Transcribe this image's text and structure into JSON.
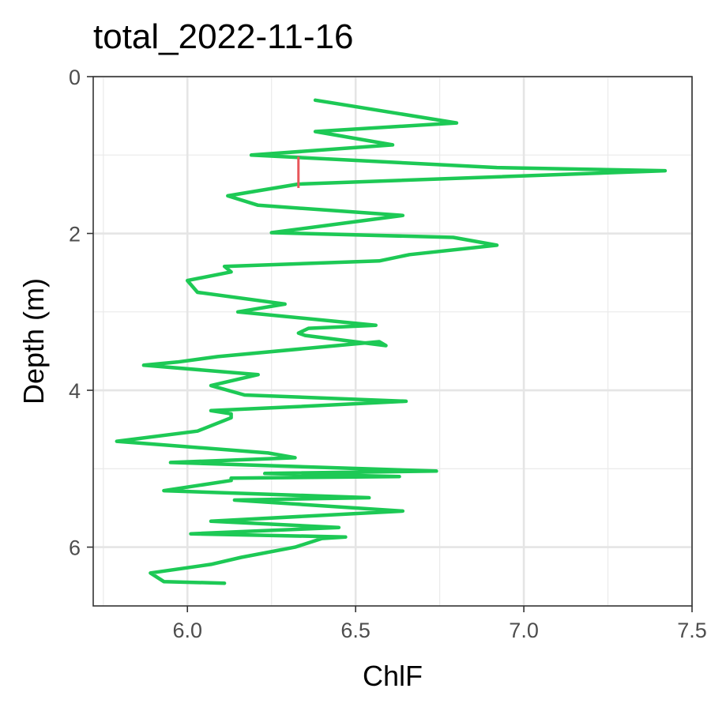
{
  "chart_data": {
    "type": "line",
    "title": "total_2022-11-16",
    "xlabel": "ChlF",
    "ylabel": "Depth (m)",
    "xlim": [
      5.72,
      7.5
    ],
    "ylim": [
      0,
      6.75
    ],
    "y_reversed": true,
    "x_ticks": [
      {
        "value": 6.0,
        "label": "6.0"
      },
      {
        "value": 6.5,
        "label": "6.5"
      },
      {
        "value": 7.0,
        "label": "7.0"
      },
      {
        "value": 7.5,
        "label": "7.5"
      }
    ],
    "y_ticks": [
      {
        "value": 0,
        "label": "0"
      },
      {
        "value": 2,
        "label": "2"
      },
      {
        "value": 4,
        "label": "4"
      },
      {
        "value": 6,
        "label": "6"
      }
    ],
    "grid": true,
    "colors": {
      "profile": "#1dc955",
      "marker": "#e8575a"
    },
    "series": [
      {
        "x": [
          6.38,
          6.8,
          6.38,
          6.61,
          6.19,
          6.92,
          7.42,
          6.33,
          6.12,
          6.21,
          6.64,
          6.25,
          6.79,
          6.92,
          6.66,
          6.57,
          6.11,
          6.13,
          6.0,
          6.03,
          6.29,
          6.15,
          6.56,
          6.36,
          6.33,
          6.35,
          6.59,
          6.57,
          6.09,
          5.97,
          5.87,
          6.21,
          6.07,
          6.17,
          6.65,
          6.32,
          6.07,
          6.13,
          6.13,
          6.03,
          5.79,
          6.24,
          6.32,
          5.95,
          6.74,
          6.23,
          6.63,
          6.13,
          6.13,
          5.93,
          6.54,
          6.14,
          6.64,
          6.07,
          6.45,
          6.01,
          6.47,
          6.4,
          6.32,
          6.16,
          6.07,
          5.89,
          5.93,
          6.11
        ],
        "y": [
          0.3,
          0.59,
          0.7,
          0.87,
          1.0,
          1.16,
          1.2,
          1.37,
          1.52,
          1.64,
          1.77,
          1.99,
          2.05,
          2.15,
          2.27,
          2.35,
          2.42,
          2.49,
          2.6,
          2.75,
          2.9,
          3.0,
          3.17,
          3.21,
          3.27,
          3.3,
          3.43,
          3.38,
          3.57,
          3.64,
          3.68,
          3.8,
          3.94,
          4.06,
          4.14,
          4.21,
          4.26,
          4.3,
          4.35,
          4.52,
          4.65,
          4.8,
          4.86,
          4.92,
          5.03,
          5.06,
          5.1,
          5.12,
          5.15,
          5.28,
          5.37,
          5.4,
          5.54,
          5.67,
          5.75,
          5.83,
          5.87,
          5.89,
          6.0,
          6.13,
          6.22,
          6.33,
          6.44,
          6.46
        ]
      },
      {
        "x": [
          6.33,
          6.33
        ],
        "y": [
          1.02,
          1.42
        ]
      }
    ]
  }
}
